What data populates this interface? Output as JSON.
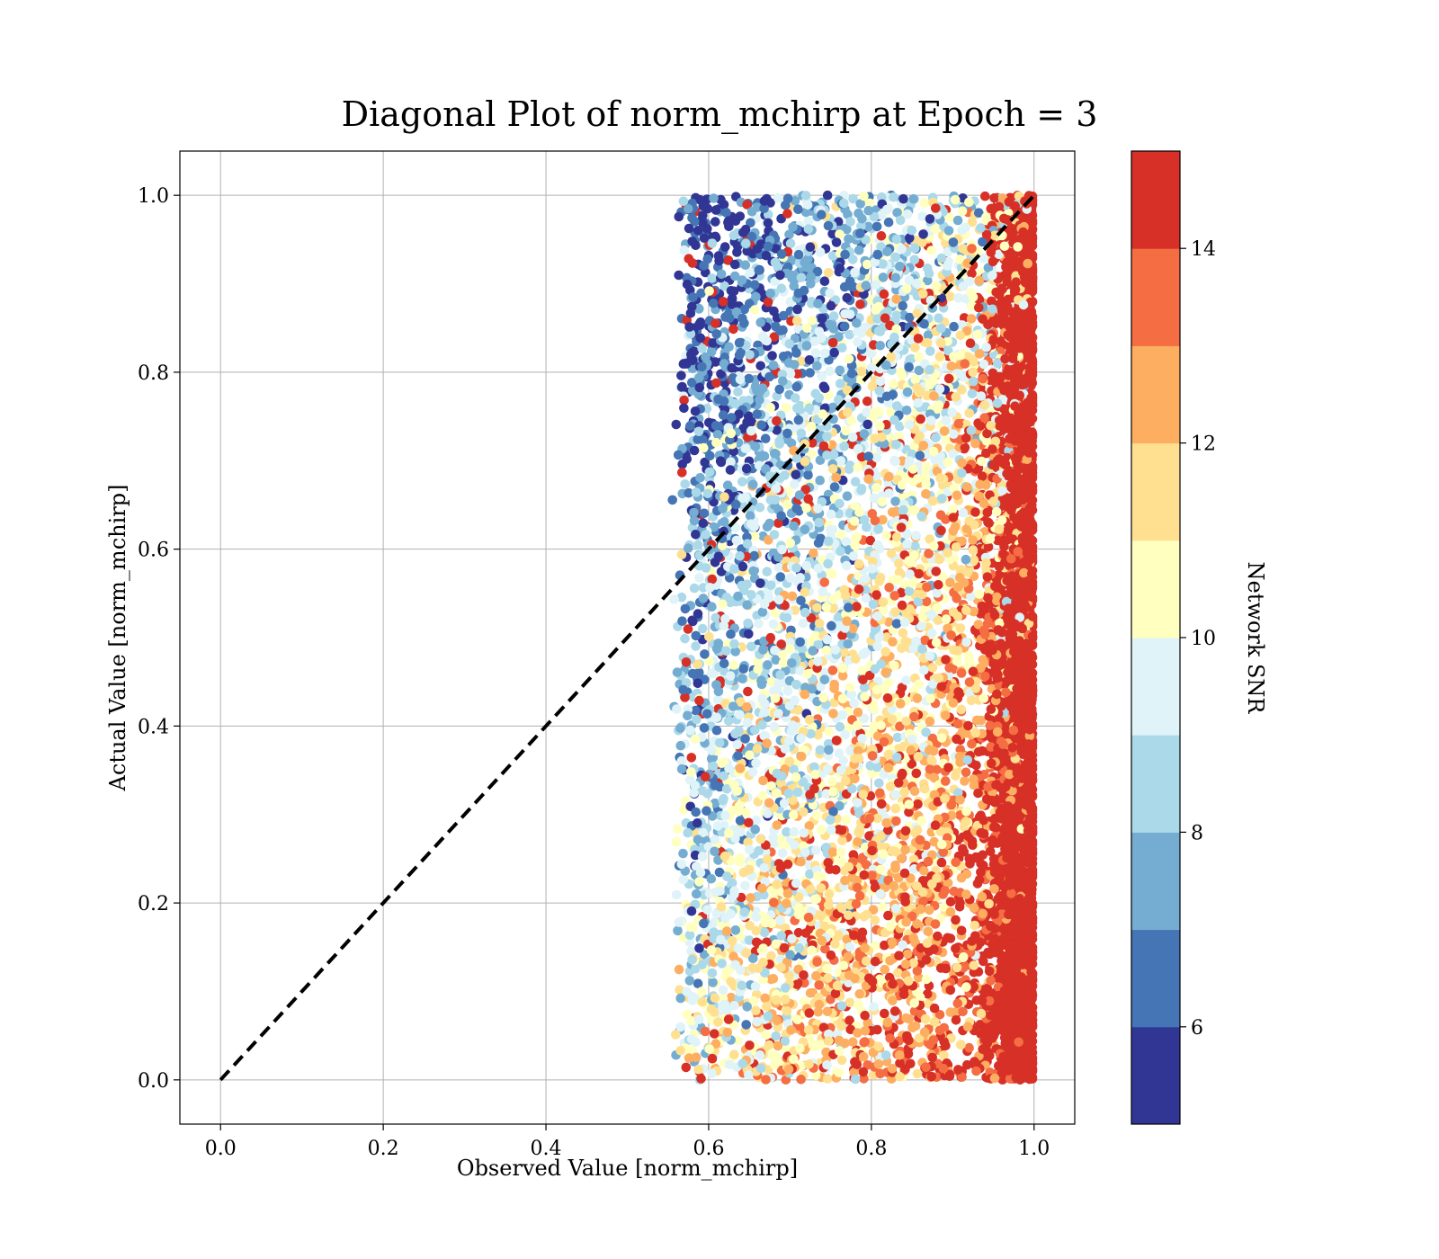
{
  "chart_data": {
    "type": "scatter",
    "title": "Diagonal Plot of norm_mchirp at Epoch = 3",
    "xlabel": "Observed Value [norm_mchirp]",
    "ylabel": "Actual Value [norm_mchirp]",
    "xlim": [
      -0.05,
      1.05
    ],
    "ylim": [
      -0.05,
      1.05
    ],
    "xticks": [
      0.0,
      0.2,
      0.4,
      0.6,
      0.8,
      1.0
    ],
    "yticks": [
      0.0,
      0.2,
      0.4,
      0.6,
      0.8,
      1.0
    ],
    "xtick_labels": [
      "0.0",
      "0.2",
      "0.4",
      "0.6",
      "0.8",
      "1.0"
    ],
    "ytick_labels": [
      "0.0",
      "0.2",
      "0.4",
      "0.6",
      "0.8",
      "1.0"
    ],
    "grid": true,
    "reference_line": {
      "style": "dashed",
      "color": "#000000",
      "from": [
        0.0,
        0.0
      ],
      "to": [
        1.0,
        1.0
      ]
    },
    "point_cloud": {
      "observed_range": [
        0.55,
        1.0
      ],
      "actual_range": [
        0.0,
        1.0
      ],
      "point_count_approx": 9000
    },
    "colorbar": {
      "label": "Network SNR",
      "range": [
        5,
        15
      ],
      "ticks": [
        6,
        8,
        10,
        12,
        14
      ],
      "tick_labels": [
        "6",
        "8",
        "10",
        "12",
        "14"
      ],
      "levels": [
        5,
        6,
        7,
        8,
        9,
        10,
        11,
        12,
        13,
        14,
        15
      ],
      "colors": [
        "#313695",
        "#4575b4",
        "#74add1",
        "#abd9e9",
        "#e0f3f8",
        "#ffffbf",
        "#fee090",
        "#fdae61",
        "#f46d43",
        "#d73027",
        "#a50026"
      ]
    }
  }
}
